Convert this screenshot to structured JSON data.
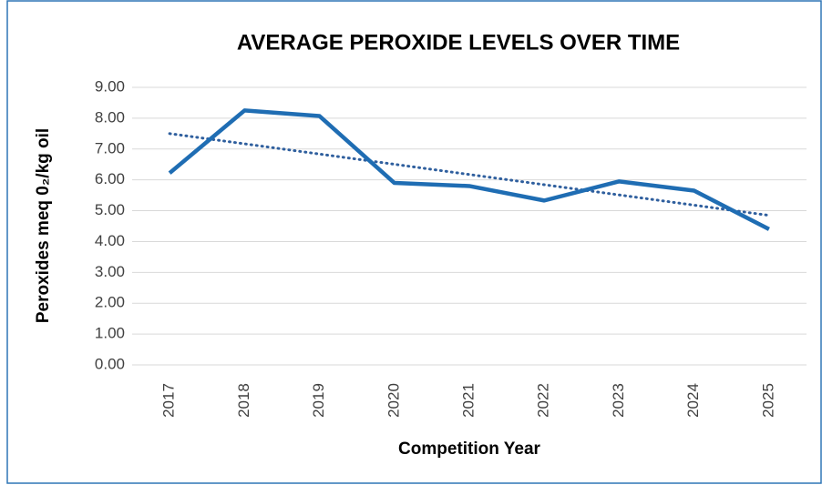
{
  "chart_data": {
    "type": "line",
    "title": "AVERAGE PEROXIDE LEVELS OVER TIME",
    "x_label": "Competition Year",
    "y_label": "Peroxides meq 0₂/kg oil",
    "categories": [
      "2017",
      "2018",
      "2019",
      "2020",
      "2021",
      "2022",
      "2023",
      "2024",
      "2025"
    ],
    "series": [
      {
        "name": "Peroxides",
        "color": "#1f6db3",
        "values": [
          6.22,
          8.25,
          8.07,
          5.9,
          5.8,
          5.33,
          5.95,
          5.65,
          4.4
        ]
      }
    ],
    "trendline": "linear",
    "trend_color": "#2f5f9e",
    "ylim": [
      0,
      9
    ],
    "yticks": [
      {
        "value": 0,
        "label": "0.00"
      },
      {
        "value": 1,
        "label": "1.00"
      },
      {
        "value": 2,
        "label": "2.00"
      },
      {
        "value": 3,
        "label": "3.00"
      },
      {
        "value": 4,
        "label": "4.00"
      },
      {
        "value": 5,
        "label": "5.00"
      },
      {
        "value": 6,
        "label": "6.00"
      },
      {
        "value": 7,
        "label": "7.00"
      },
      {
        "value": 8,
        "label": "8.00"
      },
      {
        "value": 9,
        "label": "9.00"
      }
    ],
    "grid": true
  }
}
